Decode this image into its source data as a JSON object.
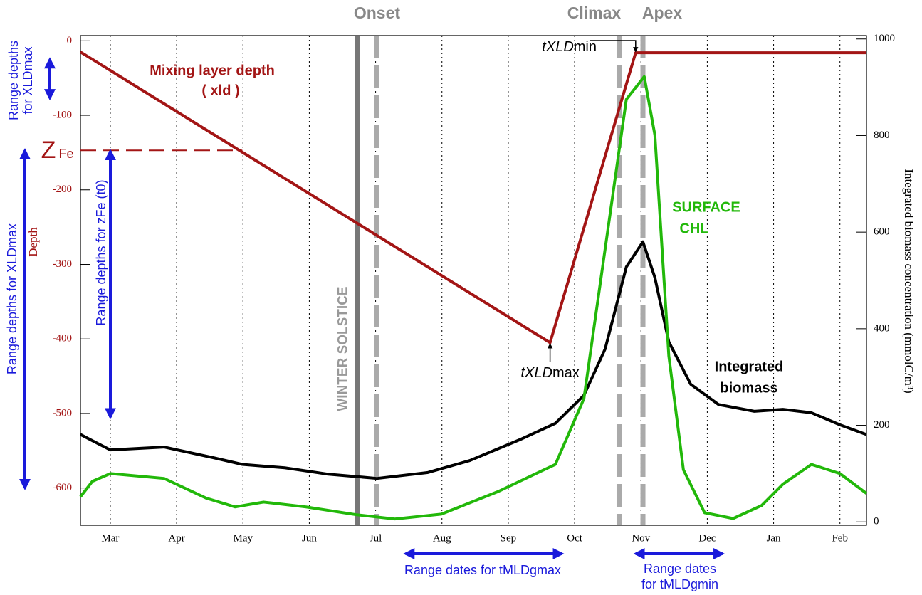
{
  "chart_data": {
    "type": "line",
    "xlim": [
      0,
      11.85
    ],
    "xticks": [
      {
        "value": 0.45,
        "label": "Mar"
      },
      {
        "value": 1.45,
        "label": "Apr"
      },
      {
        "value": 2.45,
        "label": "May"
      },
      {
        "value": 3.45,
        "label": "Jun"
      },
      {
        "value": 4.45,
        "label": "Jul"
      },
      {
        "value": 5.45,
        "label": "Aug"
      },
      {
        "value": 6.45,
        "label": "Sep"
      },
      {
        "value": 7.45,
        "label": "Oct"
      },
      {
        "value": 8.45,
        "label": "Nov"
      },
      {
        "value": 9.45,
        "label": "Dec"
      },
      {
        "value": 10.45,
        "label": "Jan"
      },
      {
        "value": 11.45,
        "label": "Feb"
      }
    ],
    "ylim": [
      -650,
      7
    ],
    "yticks": [
      0,
      -100,
      -200,
      -300,
      -400,
      -500,
      -600
    ],
    "ylabel": "Depth",
    "y2lim": [
      -7,
      1007
    ],
    "y2ticks": [
      0,
      200,
      400,
      600,
      800,
      1000
    ],
    "y2label": "Integrated biomass concentration (mmolC/m³)",
    "grid": true,
    "series": [
      {
        "label_lines": [
          "Mixing layer depth",
          "( xld )"
        ],
        "color": "#a31515",
        "x": [
          0,
          7.08,
          8.37,
          11.85
        ],
        "values": [
          -15,
          -405,
          -16,
          -16
        ]
      },
      {
        "label_lines": [
          "Integrated",
          "biomass"
        ],
        "color": "#000000",
        "axis": "y2",
        "x": [
          0,
          0.45,
          1.26,
          2.0,
          2.44,
          3.08,
          3.72,
          4.47,
          5.23,
          5.87,
          6.62,
          7.16,
          7.59,
          7.91,
          8.23,
          8.48,
          8.66,
          8.87,
          9.2,
          9.62,
          10.16,
          10.59,
          11.02,
          11.45,
          11.85
        ],
        "values": [
          181,
          149,
          155,
          133,
          119,
          112,
          99,
          90,
          102,
          127,
          170,
          204,
          262,
          358,
          528,
          580,
          506,
          373,
          285,
          243,
          229,
          233,
          226,
          201,
          181
        ]
      },
      {
        "label_lines": [
          "SURFACE",
          "CHL"
        ],
        "color": "#22b80a",
        "axis": "y2",
        "x": [
          0,
          0.18,
          0.45,
          1.26,
          1.9,
          2.33,
          2.76,
          3.4,
          4.15,
          4.74,
          5.44,
          6.3,
          7.16,
          7.59,
          7.91,
          8.23,
          8.5,
          8.66,
          8.87,
          9.09,
          9.41,
          9.84,
          10.27,
          10.59,
          11.02,
          11.45,
          11.85
        ],
        "values": [
          52,
          84,
          100,
          90,
          49,
          31,
          41,
          31,
          15,
          6,
          16,
          63,
          119,
          255,
          565,
          875,
          922,
          801,
          344,
          108,
          19,
          7,
          34,
          78,
          119,
          100,
          59
        ]
      },
      {
        "label_lines": [
          "Z",
          "Fe"
        ],
        "color": "#a31515",
        "dashed": true,
        "x": [
          0,
          2.44
        ],
        "values": [
          -147,
          -147
        ]
      }
    ],
    "events": [
      {
        "label": "WINTER SOLSTICE",
        "x": 4.18,
        "style": "solid"
      },
      {
        "label": "Onset",
        "x": 4.47,
        "style": "dashed"
      },
      {
        "label": "Climax",
        "x": 8.12,
        "style": "dashed"
      },
      {
        "label": "Apex",
        "x": 8.48,
        "style": "dashed"
      }
    ],
    "points": [
      {
        "italic": "tXLD",
        "normal": "min",
        "x": 8.37,
        "value": -16
      },
      {
        "italic": "tXLD",
        "normal": "max",
        "x": 7.08,
        "value": -405
      }
    ],
    "ranges": [
      {
        "lines": [
          "Range depths",
          "for XLDmax"
        ],
        "axis": "y",
        "from": -25,
        "to": -77
      },
      {
        "lines": [
          "Range depths for XLDmax"
        ],
        "axis": "y",
        "from": -147,
        "to": -600
      },
      {
        "lines": [
          "Range depths for zFe (t0)"
        ],
        "axis": "y",
        "from": -148,
        "to": -505
      },
      {
        "lines": [
          "Range dates for tMLDgmax"
        ],
        "axis": "x",
        "from": 4.9,
        "to": 7.26
      },
      {
        "lines": [
          "Range dates",
          "for tMLDgmin"
        ],
        "axis": "x",
        "from": 8.37,
        "to": 9.68
      }
    ]
  }
}
